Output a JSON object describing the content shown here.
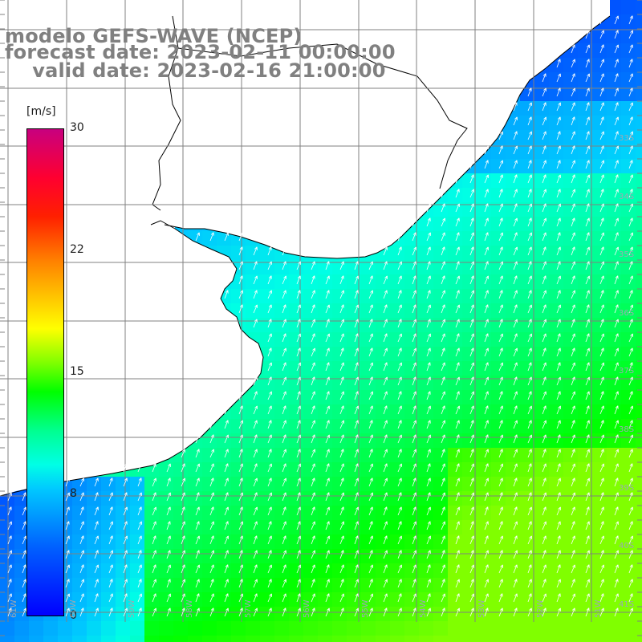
{
  "title": {
    "line1": "modelo GEFS-WAVE (NCEP)",
    "line2": "forecast date: 2023-02-11 00:00:00",
    "line3": "    valid date: 2023-02-16 21:00:00"
  },
  "colorbar": {
    "unit": "[m/s]",
    "ticks": [
      "30",
      "22",
      "15",
      "8",
      "0"
    ],
    "tick_values": [
      30,
      22,
      15,
      8,
      0
    ],
    "range": [
      0,
      30
    ],
    "colors": [
      "#0000ff",
      "#00c8ff",
      "#00ff90",
      "#00ff00",
      "#ffff00",
      "#ff8000",
      "#ff0000",
      "#c8007f"
    ]
  },
  "map": {
    "lat_labels": [
      "33S",
      "34S",
      "35S",
      "36S",
      "37S",
      "38S",
      "39S",
      "40S",
      "41S"
    ],
    "lon_labels": [
      "61W",
      "60W",
      "59W",
      "58W",
      "57W",
      "56W",
      "55W",
      "54W",
      "53W",
      "52W",
      "51W"
    ],
    "land_color": "#ffffff",
    "grid_color": "#808080",
    "arrow_color": "#ffffff",
    "variable": "wind speed and direction"
  }
}
